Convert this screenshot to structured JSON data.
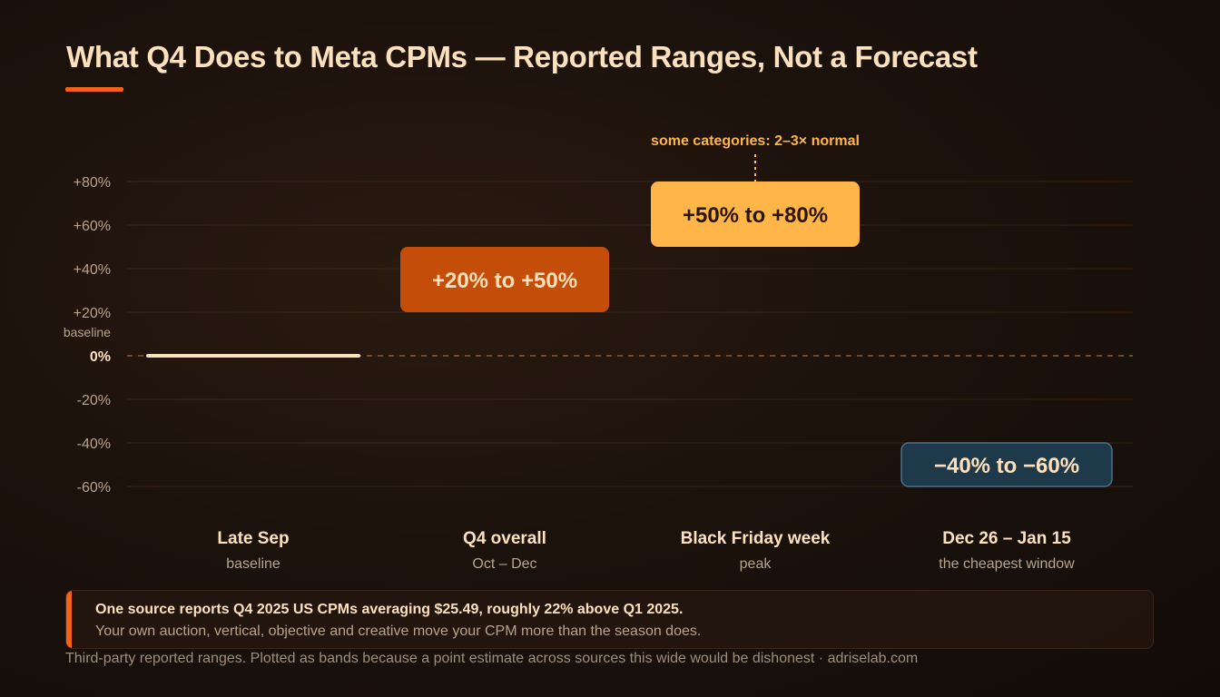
{
  "title": "What Q4 Does to Meta CPMs — Reported Ranges, Not a Forecast",
  "colors": {
    "accent": "#f4621a",
    "q4_band": "#c44d0a",
    "bf_band": "#ffb547",
    "jan_band": "#1e3a4a",
    "baseline_line": "#fde1bd",
    "text": "#fde1bd"
  },
  "chart_data": {
    "type": "range-bar",
    "ylim": [
      -60,
      80
    ],
    "y_ticks": [
      80,
      60,
      40,
      20,
      0,
      -20,
      -40,
      -60
    ],
    "y_tick_labels": [
      "+80%",
      "+60%",
      "+40%",
      "+20%",
      "0%",
      "-20%",
      "-40%",
      "-60%"
    ],
    "baseline_label": "baseline",
    "categories": [
      {
        "name": "Late Sep",
        "sub": "baseline",
        "low": 0,
        "high": 0,
        "label": ""
      },
      {
        "name": "Q4 overall",
        "sub": "Oct – Dec",
        "low": 20,
        "high": 50,
        "label": "+20% to +50%"
      },
      {
        "name": "Black Friday week",
        "sub": "peak",
        "low": 50,
        "high": 80,
        "label": "+50% to +80%"
      },
      {
        "name": "Dec 26 – Jan 15",
        "sub": "the cheapest window",
        "low": -60,
        "high": -40,
        "label": "−40% to −60%"
      }
    ],
    "annotation": "some categories: 2–3× normal"
  },
  "note": {
    "line1": "One source reports Q4 2025 US CPMs averaging $25.49, roughly 22% above Q1 2025.",
    "line2": "Your own auction, vertical, objective and creative move your CPM more than the season does."
  },
  "footer": "Third-party reported ranges. Plotted as bands because a point estimate across sources this wide would be dishonest · adriselab.com"
}
